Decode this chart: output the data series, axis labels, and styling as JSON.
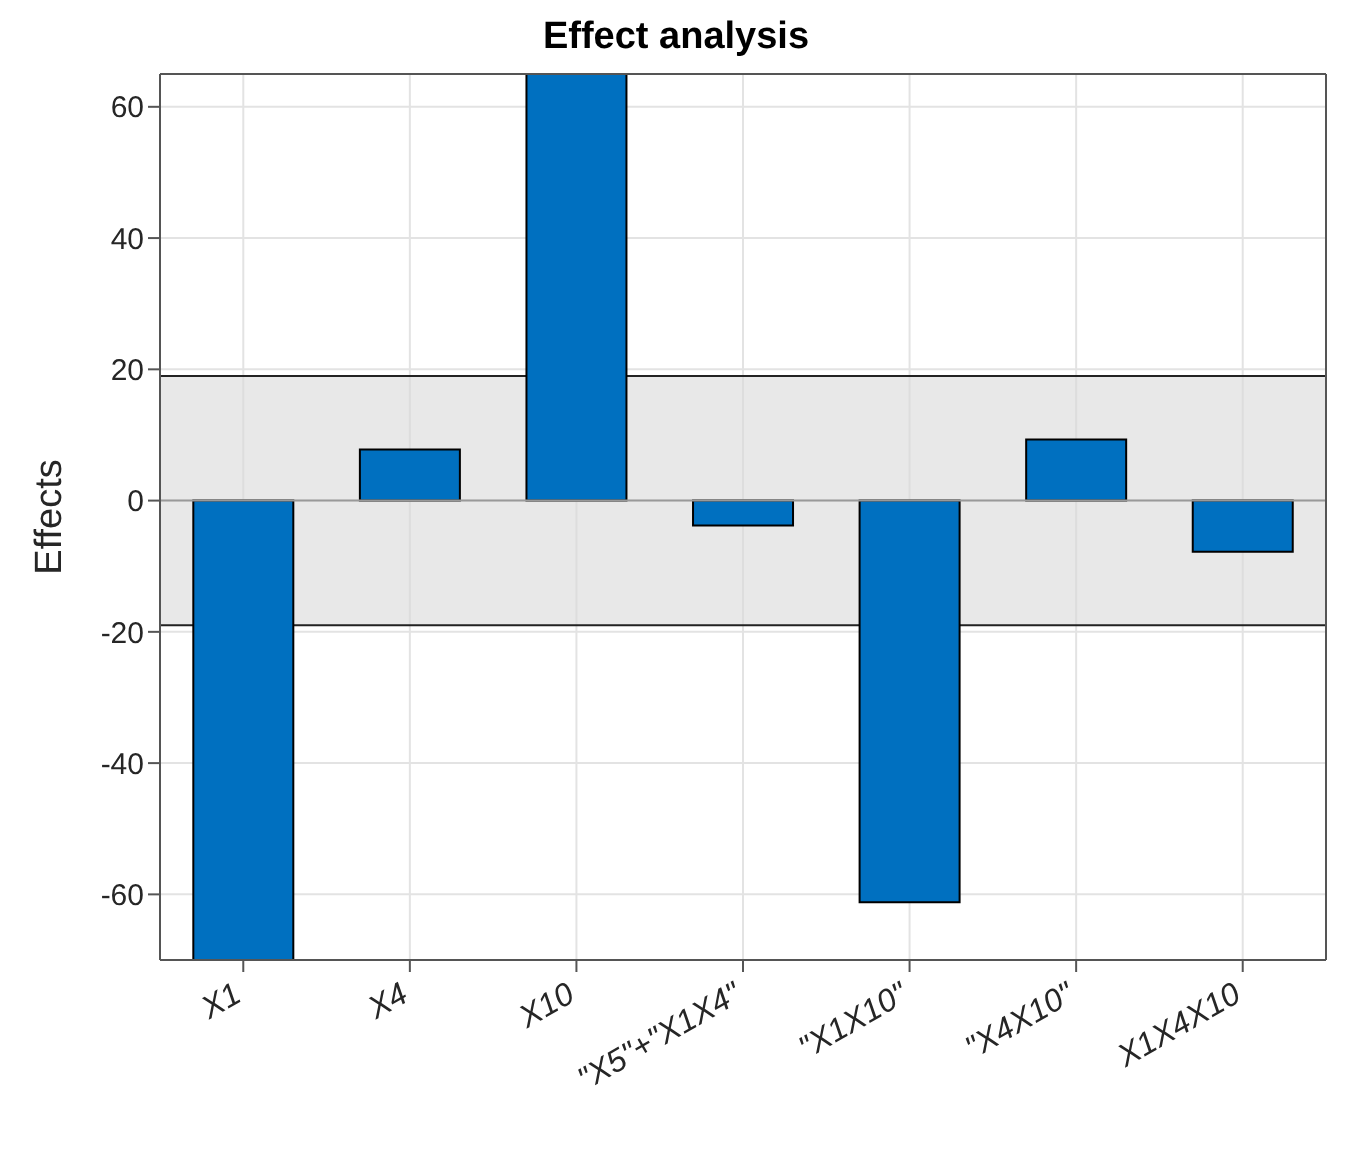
{
  "chart_data": {
    "type": "bar",
    "title": "Effect analysis",
    "ylabel": "Effects",
    "categories": [
      "X1",
      "X4",
      "X10",
      "\"X5\"+\"X1X4\"",
      "\"X1X10\"",
      "\"X4X10\"",
      "X1X4X10"
    ],
    "values": [
      -70,
      7.8,
      65,
      -3.8,
      -61.2,
      9.3,
      -7.8
    ],
    "color": "#0070c0",
    "ylim": [
      -70,
      65
    ],
    "yticks": [
      -60,
      -40,
      -20,
      0,
      20,
      40,
      60
    ],
    "bands": [
      {
        "axis": "y",
        "from": -19,
        "to": 19,
        "color": "#d9d9d9"
      }
    ],
    "grid": true
  }
}
